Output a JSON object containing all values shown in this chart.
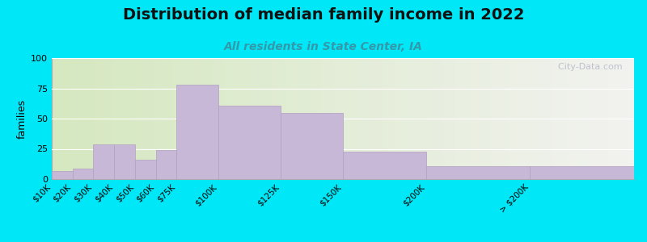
{
  "title": "Distribution of median family income in 2022",
  "subtitle": "All residents in State Center, IA",
  "ylabel": "families",
  "categories": [
    "$10K",
    "$20K",
    "$30K",
    "$40K",
    "$50K",
    "$60K",
    "$75K",
    "$100K",
    "$125K",
    "$150K",
    "$200K",
    "> $200K"
  ],
  "values": [
    7,
    9,
    29,
    29,
    16,
    24,
    78,
    61,
    55,
    23,
    11,
    11
  ],
  "bar_color": "#c8b8d8",
  "bar_edge_color": "#b0a0c0",
  "ylim": [
    0,
    100
  ],
  "yticks": [
    0,
    25,
    50,
    75,
    100
  ],
  "background_outer": "#00e8f8",
  "background_inner_left": "#d5e8c0",
  "background_inner_right": "#f2f2ee",
  "title_fontsize": 14,
  "subtitle_fontsize": 10,
  "subtitle_color": "#3399aa",
  "watermark_text": "  City-Data.com",
  "watermark_color": "#bbbbcc",
  "bar_widths": [
    1,
    1,
    1,
    1,
    1,
    1,
    1,
    1,
    1,
    1,
    1,
    1
  ],
  "bar_lefts": [
    0,
    1,
    2,
    3,
    4,
    5,
    6,
    8,
    10,
    12,
    16,
    22
  ]
}
